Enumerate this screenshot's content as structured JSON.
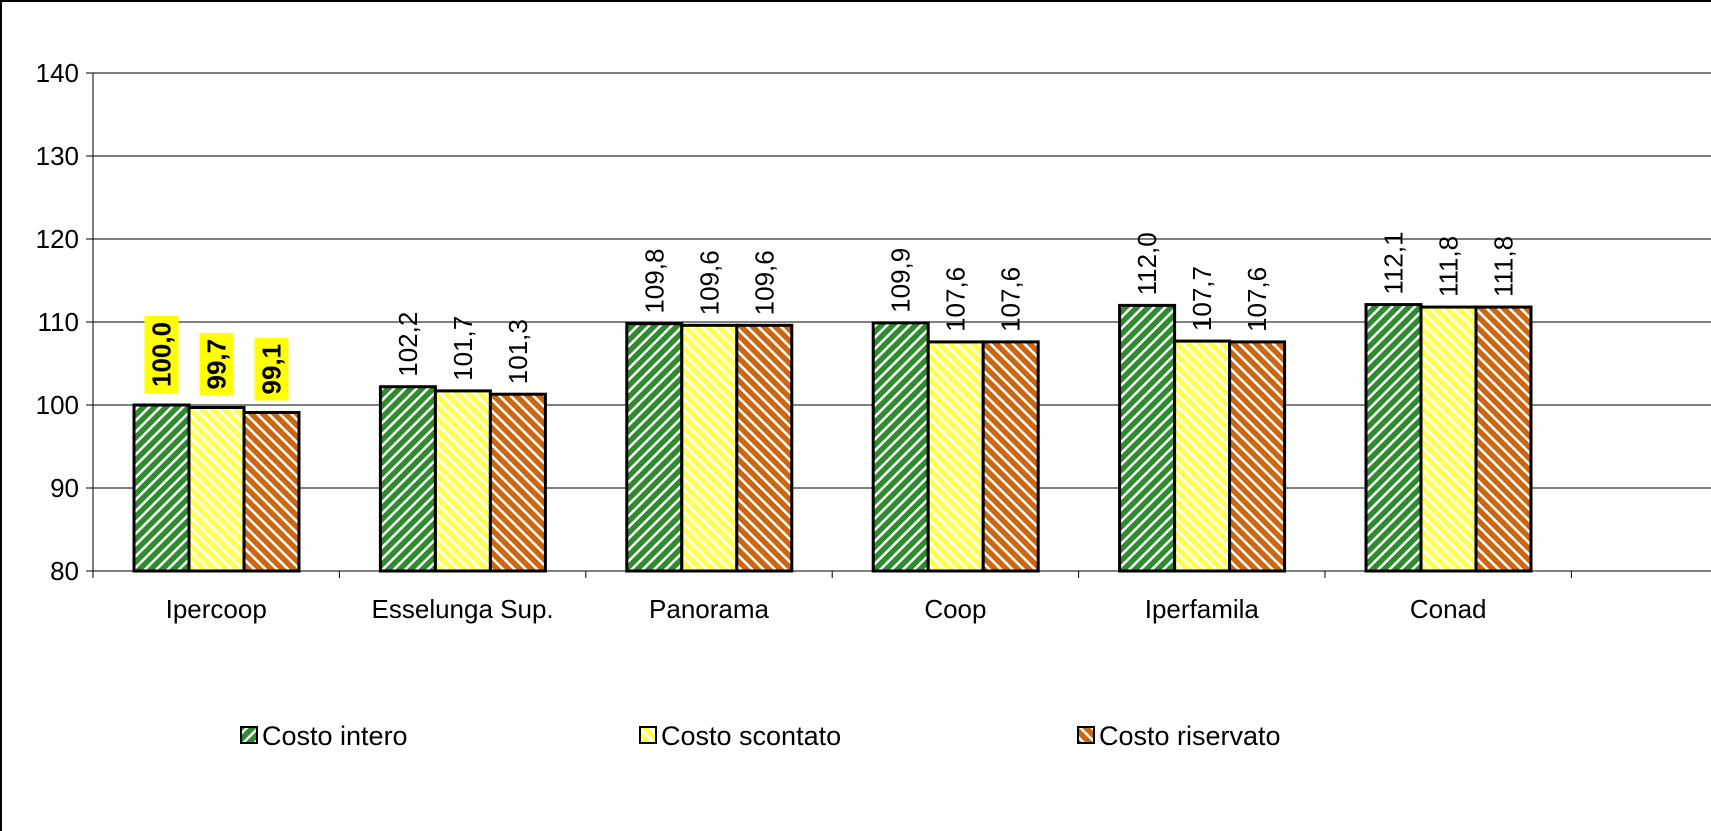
{
  "chart_data": {
    "type": "bar",
    "categories": [
      "Ipercoop",
      "Esselunga Sup.",
      "Panorama",
      "Coop",
      "Iperfamila",
      "Conad"
    ],
    "series": [
      {
        "name": "Costo intero",
        "color": "#2e8b2e",
        "values": [
          100.0,
          102.2,
          109.8,
          109.9,
          112.0,
          112.1
        ],
        "value_labels": [
          "100,0",
          "102,2",
          "109,8",
          "109,9",
          "112,0",
          "112,1"
        ]
      },
      {
        "name": "Costo scontato",
        "color": "#ffff55",
        "values": [
          99.7,
          101.7,
          109.6,
          107.6,
          107.7,
          111.8
        ],
        "value_labels": [
          "99,7",
          "101,7",
          "109,6",
          "107,6",
          "107,7",
          "111,8"
        ]
      },
      {
        "name": "Costo riservato",
        "color": "#cc6611",
        "values": [
          99.1,
          101.3,
          109.6,
          107.6,
          107.6,
          111.8
        ],
        "value_labels": [
          "99,1",
          "101,3",
          "109,6",
          "107,6",
          "107,6",
          "111,8"
        ]
      }
    ],
    "ylim": [
      80,
      140
    ],
    "yticks": [
      80,
      90,
      100,
      110,
      120,
      130,
      140
    ],
    "grid": true,
    "legend": "bottom"
  }
}
